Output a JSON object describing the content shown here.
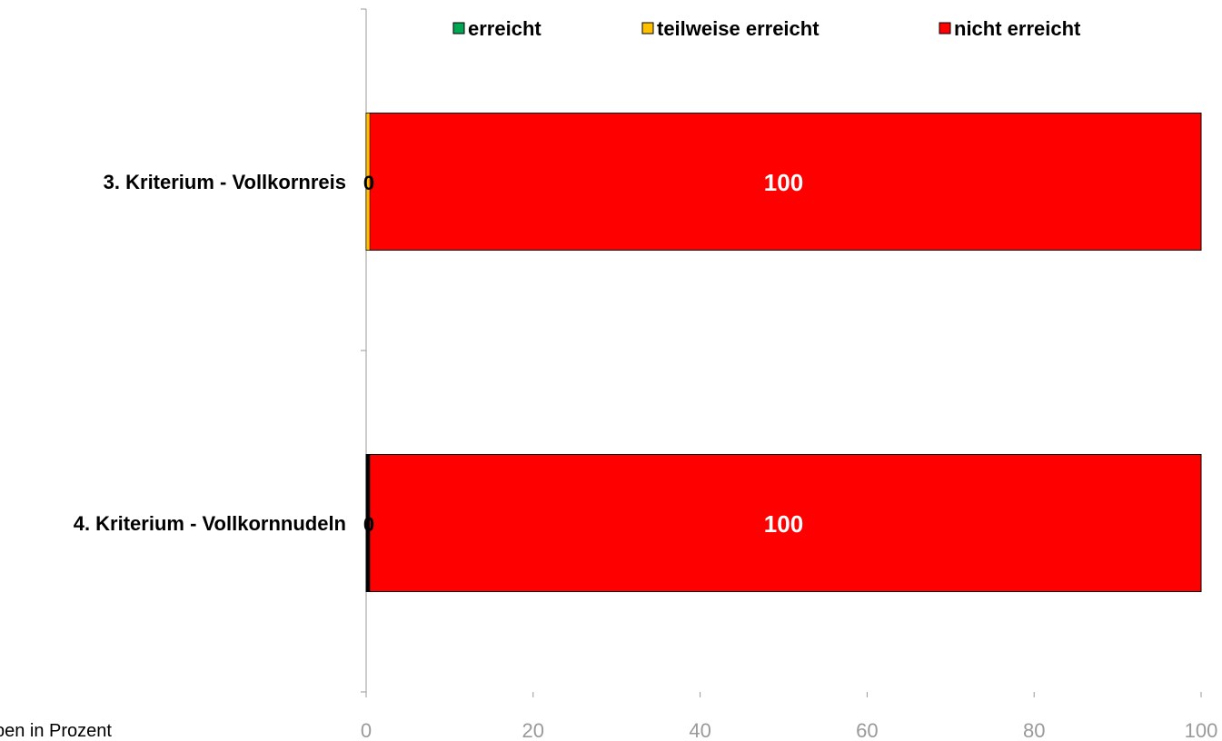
{
  "chart_data": {
    "type": "bar",
    "orientation": "horizontal",
    "stacked": true,
    "categories": [
      "3. Kriterium - Vollkornreis",
      "4. Kriterium - Vollkornnudeln"
    ],
    "series": [
      {
        "name": "erreicht",
        "color": "#00a651",
        "values": [
          0,
          0
        ]
      },
      {
        "name": "teilweise erreicht",
        "color": "#ffc000",
        "values": [
          0,
          0
        ]
      },
      {
        "name": "nicht erreicht",
        "color": "#ff0000",
        "values": [
          100,
          100
        ]
      }
    ],
    "data_labels": [
      {
        "category": 0,
        "zero_label": "0",
        "main_label": "100"
      },
      {
        "category": 1,
        "zero_label": "0",
        "main_label": "100"
      }
    ],
    "xlim": [
      0,
      100
    ],
    "xticks": [
      0,
      20,
      40,
      60,
      80,
      100
    ],
    "legend": "top",
    "grid": false
  },
  "footnote": "pen in Prozent"
}
